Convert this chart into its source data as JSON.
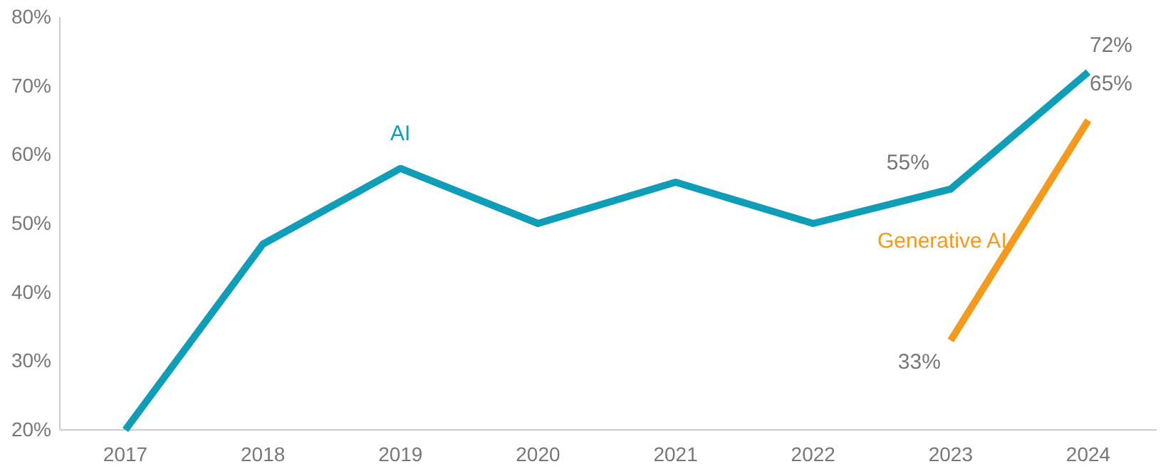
{
  "chart_data": {
    "type": "line",
    "categories": [
      "2017",
      "2018",
      "2019",
      "2020",
      "2021",
      "2022",
      "2023",
      "2024"
    ],
    "ylim": [
      20,
      80
    ],
    "yticks": [
      {
        "value": 20,
        "label": "20%"
      },
      {
        "value": 30,
        "label": "30%"
      },
      {
        "value": 40,
        "label": "40%"
      },
      {
        "value": 50,
        "label": "50%"
      },
      {
        "value": 60,
        "label": "60%"
      },
      {
        "value": 70,
        "label": "70%"
      },
      {
        "value": 80,
        "label": "80%"
      }
    ],
    "grid": false,
    "marker": "none",
    "line_style": "solid",
    "series": [
      {
        "name": "AI",
        "color": "#0f9db8",
        "values": [
          20,
          47,
          58,
          50,
          56,
          50,
          55,
          72
        ],
        "value_labels": [
          null,
          null,
          null,
          null,
          null,
          null,
          "55%",
          "72%"
        ]
      },
      {
        "name": "Generative AI",
        "color": "#f39a1f",
        "values": [
          null,
          null,
          null,
          null,
          null,
          null,
          33,
          65
        ],
        "value_labels": [
          null,
          null,
          null,
          null,
          null,
          null,
          "33%",
          "65%"
        ]
      }
    ]
  }
}
